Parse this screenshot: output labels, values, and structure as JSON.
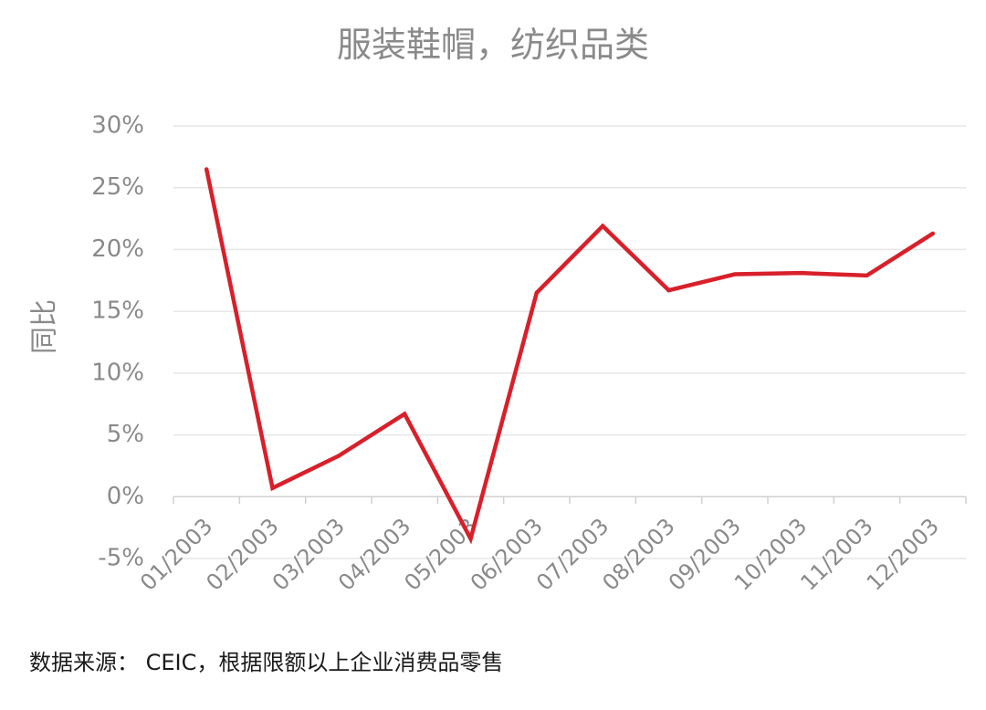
{
  "chart_data": {
    "type": "line",
    "title": "服装鞋帽，纺织品类",
    "ylabel": "同比",
    "xlabel": "",
    "categories": [
      "01/2003",
      "02/2003",
      "03/2003",
      "04/2003",
      "05/2003",
      "06/2003",
      "07/2003",
      "08/2003",
      "09/2003",
      "10/2003",
      "11/2003",
      "12/2003"
    ],
    "series": [
      {
        "values": [
          26.5,
          0.7,
          3.3,
          6.7,
          -3.4,
          16.5,
          21.9,
          16.7,
          18.0,
          18.1,
          17.9,
          21.3
        ]
      }
    ],
    "ylim": [
      -5,
      30
    ],
    "yticks": [
      -5,
      0,
      5,
      10,
      15,
      20,
      25,
      30
    ],
    "ytick_labels": [
      "-5%",
      "0%",
      "5%",
      "10%",
      "15%",
      "20%",
      "25%",
      "30%"
    ],
    "grid": true,
    "line_color": "#d8202a",
    "grid_color": "#e6e6e6",
    "text_color": "#8a8a8a"
  },
  "source": "数据来源： CEIC，根据限额以上企业消费品零售"
}
